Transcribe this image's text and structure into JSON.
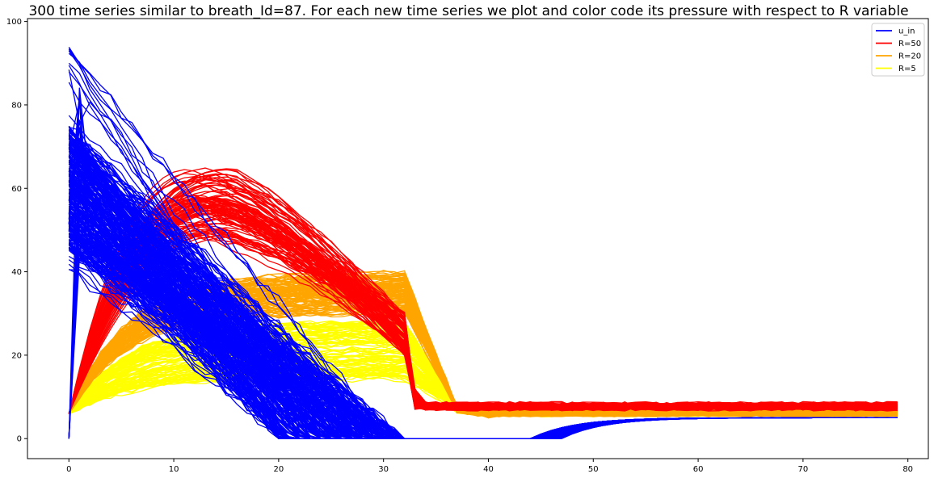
{
  "chart_data": {
    "type": "line",
    "title": "300 time series similar to breath_Id=87. For each new time series we plot and color code its pressure with respect to R variable",
    "xlabel": "",
    "ylabel": "",
    "xlim": [
      -3.95,
      81.95
    ],
    "ylim": [
      -4.8,
      100.7
    ],
    "x_ticks": [
      0,
      10,
      20,
      30,
      40,
      50,
      60,
      70,
      80
    ],
    "y_ticks": [
      0,
      20,
      40,
      60,
      80,
      100
    ],
    "grid": false,
    "legend_position": "upper right",
    "legend": [
      {
        "label": "u_in",
        "color": "#0000ff"
      },
      {
        "label": "R=50",
        "color": "#ff0000"
      },
      {
        "label": "R=20",
        "color": "#ffa500"
      },
      {
        "label": "R=5",
        "color": "#ffff00"
      }
    ],
    "x": [
      0,
      1,
      2,
      3,
      4,
      5,
      6,
      7,
      8,
      9,
      10,
      11,
      12,
      13,
      14,
      15,
      16,
      17,
      18,
      19,
      20,
      21,
      22,
      23,
      24,
      25,
      26,
      27,
      28,
      29,
      30,
      31,
      32,
      33,
      34,
      35,
      36,
      37,
      38,
      39,
      40,
      41,
      42,
      43,
      44,
      45,
      46,
      47,
      48,
      49,
      50,
      51,
      52,
      53,
      54,
      55,
      56,
      57,
      58,
      59,
      60,
      61,
      62,
      63,
      64,
      65,
      66,
      67,
      68,
      69,
      70,
      71,
      72,
      73,
      74,
      75,
      76,
      77,
      78,
      79
    ],
    "series_groups": [
      {
        "name": "u_in",
        "color": "#0000ff",
        "count": 300,
        "start_range": [
          40,
          96
        ],
        "zero_at_step_range": [
          20,
          32
        ],
        "recovery_start_range": [
          44,
          47
        ],
        "final": 5
      },
      {
        "name": "R=50",
        "color": "#ff0000",
        "count": 100,
        "start": 6,
        "peak_range": [
          48,
          65
        ],
        "peak_step_range": [
          11,
          16
        ],
        "plateau_range": [
          20,
          30
        ],
        "drop_step": 32,
        "final_range": [
          7,
          8
        ]
      },
      {
        "name": "R=20",
        "color": "#ffa500",
        "count": 100,
        "start": 6,
        "peak_range": [
          30,
          40
        ],
        "drop_step": 32,
        "final_range": [
          5.5,
          6.5
        ]
      },
      {
        "name": "R=5",
        "color": "#ffff00",
        "count": 100,
        "start": 6,
        "peak_range": [
          14,
          28
        ],
        "drop_step": 32,
        "final_range": [
          5.5,
          6.5
        ]
      }
    ]
  }
}
